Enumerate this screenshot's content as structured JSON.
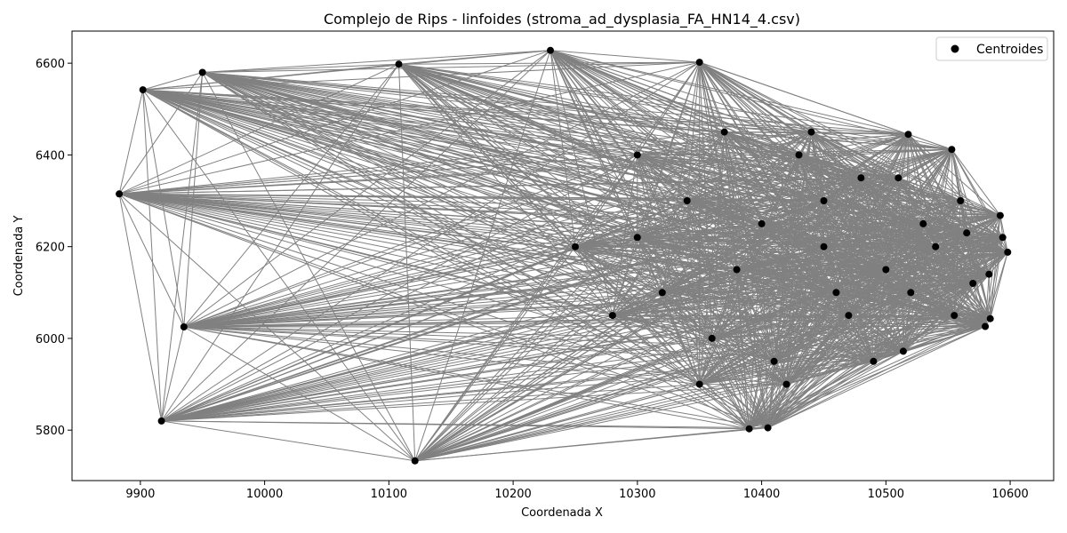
{
  "chart_data": {
    "type": "scatter",
    "title": "Complejo de Rips - linfoides (stroma_ad_dysplasia_FA_HN14_4.csv)",
    "xlabel": "Coordenada X",
    "ylabel": "Coordenada Y",
    "xlim": [
      9845,
      10635
    ],
    "ylim": [
      5690,
      6670
    ],
    "xticks": [
      9900,
      10000,
      10100,
      10200,
      10300,
      10400,
      10500,
      10600
    ],
    "yticks": [
      5800,
      6000,
      6200,
      6400,
      6600
    ],
    "grid": false,
    "legend": {
      "placement": "top-right",
      "entries": [
        "Centroides"
      ]
    },
    "colors": {
      "points": "#000000",
      "edges": "#808080"
    },
    "series": [
      {
        "name": "Centroides",
        "points": [
          [
            9883,
            6315
          ],
          [
            9902,
            6542
          ],
          [
            9950,
            6580
          ],
          [
            9917,
            5820
          ],
          [
            9935,
            6025
          ],
          [
            10108,
            6598
          ],
          [
            10121,
            5733
          ],
          [
            10230,
            6628
          ],
          [
            10350,
            6602
          ],
          [
            10390,
            5803
          ],
          [
            10405,
            5805
          ],
          [
            10514,
            5972
          ],
          [
            10518,
            6445
          ],
          [
            10553,
            6412
          ],
          [
            10580,
            6026
          ],
          [
            10584,
            6043
          ],
          [
            10592,
            6268
          ],
          [
            10594,
            6220
          ],
          [
            10598,
            6188
          ],
          [
            10583,
            6140
          ],
          [
            10555,
            6050
          ],
          [
            10560,
            6300
          ],
          [
            10480,
            6350
          ],
          [
            10470,
            6050
          ],
          [
            10450,
            6200
          ],
          [
            10420,
            5900
          ],
          [
            10430,
            6400
          ],
          [
            10380,
            6150
          ],
          [
            10360,
            6000
          ],
          [
            10340,
            6300
          ],
          [
            10320,
            6100
          ],
          [
            10300,
            6220
          ],
          [
            10400,
            6250
          ],
          [
            10450,
            6300
          ],
          [
            10500,
            6150
          ],
          [
            10520,
            6100
          ],
          [
            10530,
            6250
          ],
          [
            10490,
            5950
          ],
          [
            10410,
            5950
          ],
          [
            10350,
            5900
          ],
          [
            10370,
            6450
          ],
          [
            10300,
            6400
          ],
          [
            10250,
            6200
          ],
          [
            10280,
            6050
          ],
          [
            10460,
            6100
          ],
          [
            10540,
            6200
          ],
          [
            10570,
            6120
          ],
          [
            10565,
            6230
          ],
          [
            10510,
            6350
          ],
          [
            10440,
            6450
          ]
        ]
      }
    ],
    "edges_note": "Complejo de Rips"
  }
}
